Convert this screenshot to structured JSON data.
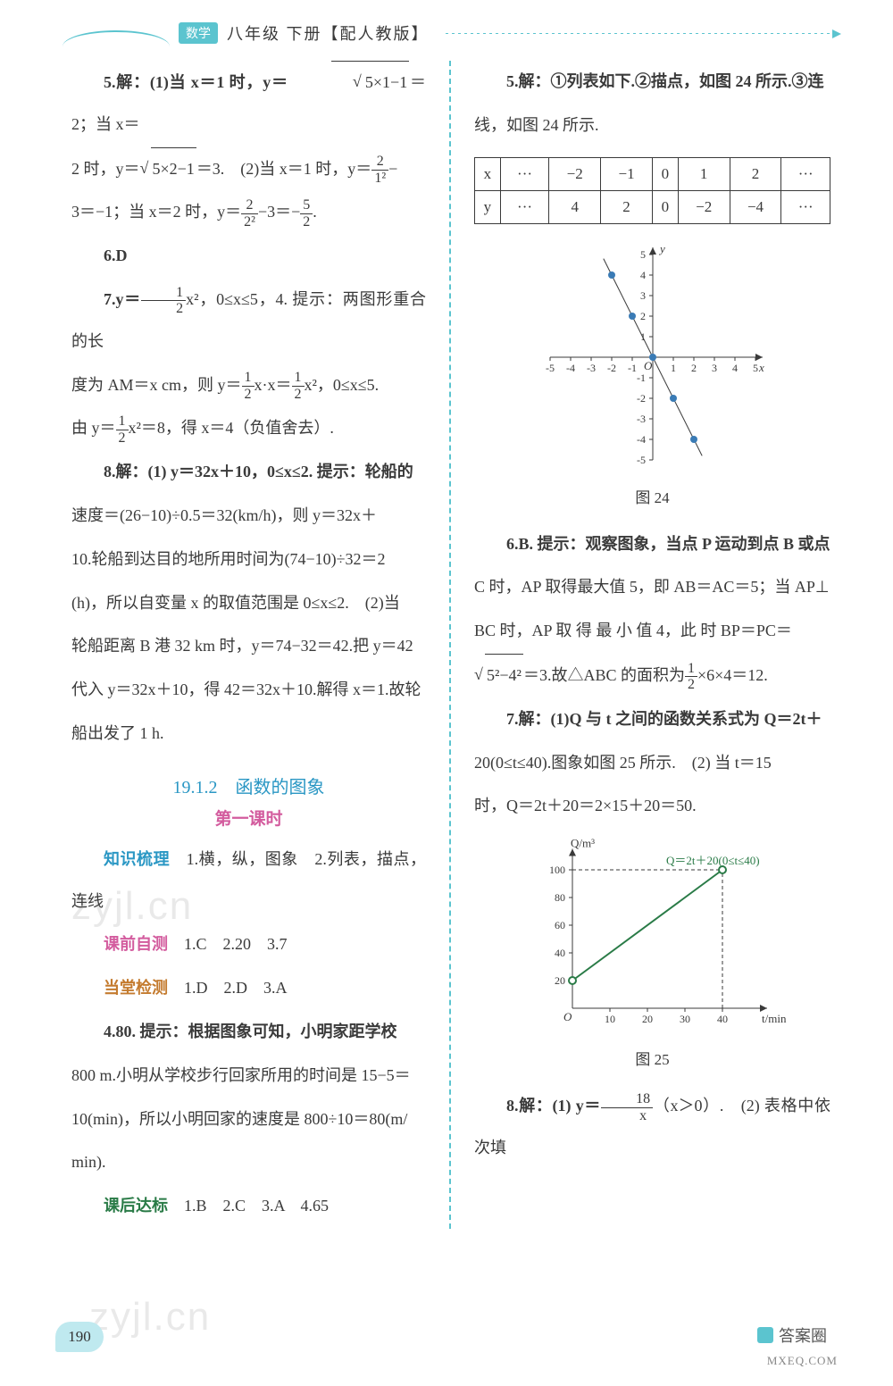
{
  "header": {
    "badge": "数学",
    "title": "八年级 下册【配人教版】"
  },
  "left": {
    "p5": "5.解：(1)当 x＝1 时，y＝",
    "p5sqrtA": "5×1−1",
    "p5mid1": "＝2；当 x＝",
    "p5mid2": "2 时，y＝",
    "p5sqrtB": "5×2−1",
    "p5mid3": "＝3.　(2)当 x＝1 时，y＝",
    "p5fr1n": "2",
    "p5fr1d": "1²",
    "p5mid4": "−",
    "p5line2a": "3＝−1；当 x＝2 时，y＝",
    "p5fr2n": "2",
    "p5fr2d": "2²",
    "p5line2b": "−3＝−",
    "p5fr3n": "5",
    "p5fr3d": "2",
    "p5line2c": ".",
    "p6": "6.D",
    "p7a": "7.y＝",
    "p7fr1n": "1",
    "p7fr1d": "2",
    "p7b": "x²，0≤x≤5，4. 提示：两图形重合的长",
    "p7c": "度为 AM＝x cm，则 y＝",
    "p7fr2n": "1",
    "p7fr2d": "2",
    "p7d": "x·x＝",
    "p7fr3n": "1",
    "p7fr3d": "2",
    "p7e": "x²，0≤x≤5.",
    "p7f": "由 y＝",
    "p7fr4n": "1",
    "p7fr4d": "2",
    "p7g": "x²＝8，得 x＝4（负值舍去）.",
    "p8a": "8.解：(1) y＝32x＋10，0≤x≤2. 提示：轮船的",
    "p8b": "速度＝(26−10)÷0.5＝32(km/h)，则 y＝32x＋",
    "p8c": "10.轮船到达目的地所用时间为(74−10)÷32＝2",
    "p8d": "(h)，所以自变量 x 的取值范围是 0≤x≤2.　(2)当",
    "p8e": "轮船距离 B 港 32 km 时，y＝74−32＝42.把 y＝42",
    "p8f": "代入 y＝32x＋10，得 42＝32x＋10.解得 x＝1.故轮",
    "p8g": "船出发了 1 h.",
    "sectTitle": "19.1.2　函数的图象",
    "subTitle": "第一课时",
    "zs": "知识梳理　1.横，纵，图象　2.列表，描点，连线",
    "kq": "课前自测　1.C　2.20　3.7",
    "dt": "当堂检测　1.D　2.D　3.A",
    "q4a": "4.80. 提示：根据图象可知，小明家距学校",
    "q4b": "800 m.小明从学校步行回家所用的时间是 15−5＝",
    "q4c": "10(min)，所以小明回家的速度是 800÷10＝80(m/",
    "q4d": "min).",
    "kh": "课后达标　1.B　2.C　3.A　4.65"
  },
  "right": {
    "p5a": "5.解：①列表如下.②描点，如图 24 所示.③连",
    "p5b": "线，如图 24 所示.",
    "table": {
      "r1": [
        "x",
        "···",
        "−2",
        "−1",
        "0",
        "1",
        "2",
        "···"
      ],
      "r2": [
        "y",
        "···",
        "4",
        "2",
        "0",
        "−2",
        "−4",
        "···"
      ]
    },
    "chart24": {
      "type": "scatter-line",
      "xlim": [
        -5,
        5
      ],
      "ylim": [
        -5,
        5
      ],
      "xticks": [
        -5,
        -4,
        -3,
        -2,
        -1,
        1,
        2,
        3,
        4,
        5
      ],
      "yticks": [
        -5,
        -4,
        -3,
        -2,
        -1,
        1,
        2,
        3,
        4,
        5
      ],
      "axis_color": "#3a3a3a",
      "point_color": "#3a7bb5",
      "line_color": "#3a3a3a",
      "point_r": 4,
      "points": [
        [
          -2,
          4
        ],
        [
          -1,
          2
        ],
        [
          0,
          0
        ],
        [
          1,
          -2
        ],
        [
          2,
          -4
        ]
      ]
    },
    "fig24": "图 24",
    "p6a": "6.B. 提示：观察图象，当点 P 运动到点 B 或点",
    "p6b": "C 时，AP 取得最大值 5，即 AB＝AC＝5；当 AP⊥",
    "p6c": "BC 时，AP 取 得 最 小 值 4，此 时 BP＝PC＝",
    "p6s": "5²−4²",
    "p6d": "＝3.故△ABC 的面积为",
    "p6frn": "1",
    "p6frd": "2",
    "p6e": "×6×4＝12.",
    "p7a": "7.解：(1)Q 与 t 之间的函数关系式为 Q＝2t＋",
    "p7b": "20(0≤t≤40).图象如图 25 所示.　(2) 当 t＝15",
    "p7c": "时，Q＝2t＋20＝2×15＋20＝50.",
    "chart25": {
      "type": "line",
      "xlabel": "t/min",
      "ylabel": "Q/m³",
      "xlim": [
        0,
        50
      ],
      "ylim": [
        0,
        110
      ],
      "xticks": [
        10,
        20,
        30,
        40
      ],
      "yticks": [
        20,
        40,
        60,
        80,
        100
      ],
      "axis_color": "#3a3a3a",
      "line_color": "#2a7b47",
      "dash_color": "#3a3a3a",
      "annotation": "Q＝2t＋20(0≤t≤40)",
      "anno_color": "#2a7b47",
      "seg": [
        [
          0,
          20
        ],
        [
          40,
          100
        ]
      ],
      "dashes": [
        [
          [
            0,
            100
          ],
          [
            40,
            100
          ]
        ],
        [
          [
            40,
            0
          ],
          [
            40,
            100
          ]
        ]
      ]
    },
    "fig25": "图 25",
    "p8a": "8.解：(1) y＝",
    "p8frn": "18",
    "p8frd": "x",
    "p8b": "（x＞0）.　(2) 表格中依次填"
  },
  "watermark1": "zyjl.cn",
  "watermark2": "zyjl.cn",
  "pageNumber": "190",
  "answerBadge": "答案圈",
  "mxq": "MXEQ.COM"
}
